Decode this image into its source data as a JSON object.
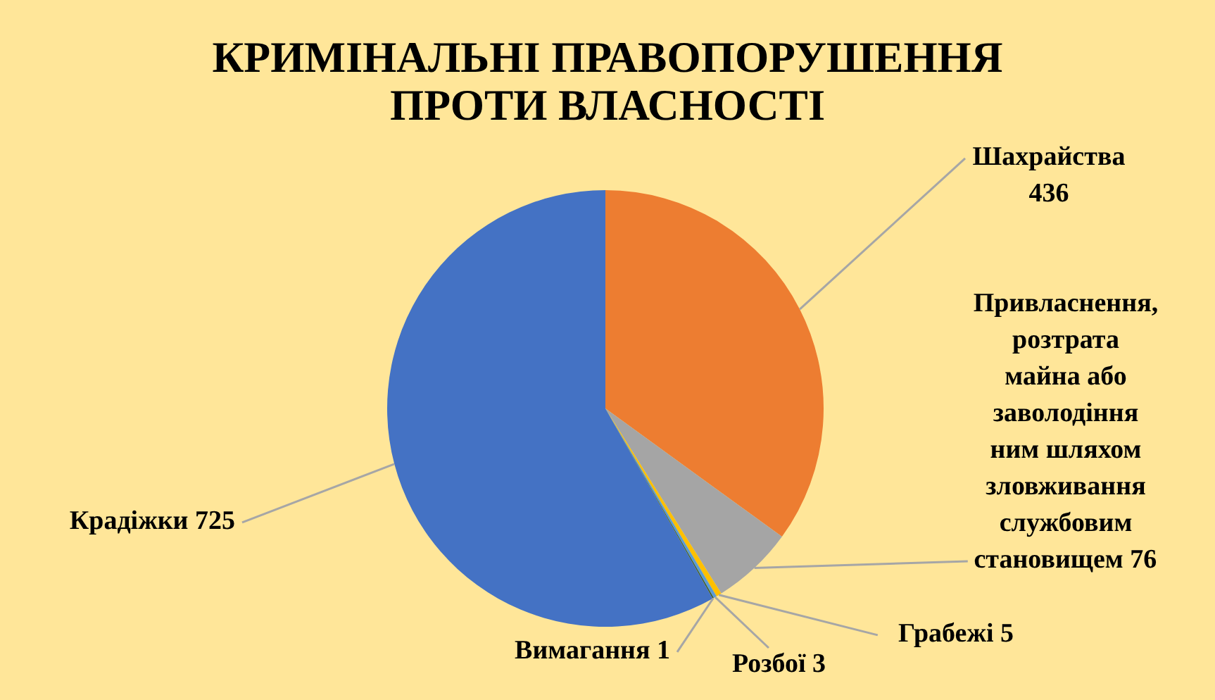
{
  "chart_data": {
    "type": "pie",
    "title": "КРИМІНАЛЬНІ ПРАВОПОРУШЕННЯ ПРОТИ ВЛАСНОСТІ",
    "categories": [
      "Шахрайства",
      "Привласнення, розтрата майна або заволодіння ним шляхом зловживання службовим становищем",
      "Грабежі",
      "Розбої",
      "Вимагання",
      "Крадіжки"
    ],
    "values": [
      436,
      76,
      5,
      3,
      1,
      725
    ],
    "colors": [
      "#ed7d31",
      "#a5a5a5",
      "#ffc000",
      "#5b9bd5",
      "#385723",
      "#4472c4"
    ],
    "data_labels": true
  }
}
